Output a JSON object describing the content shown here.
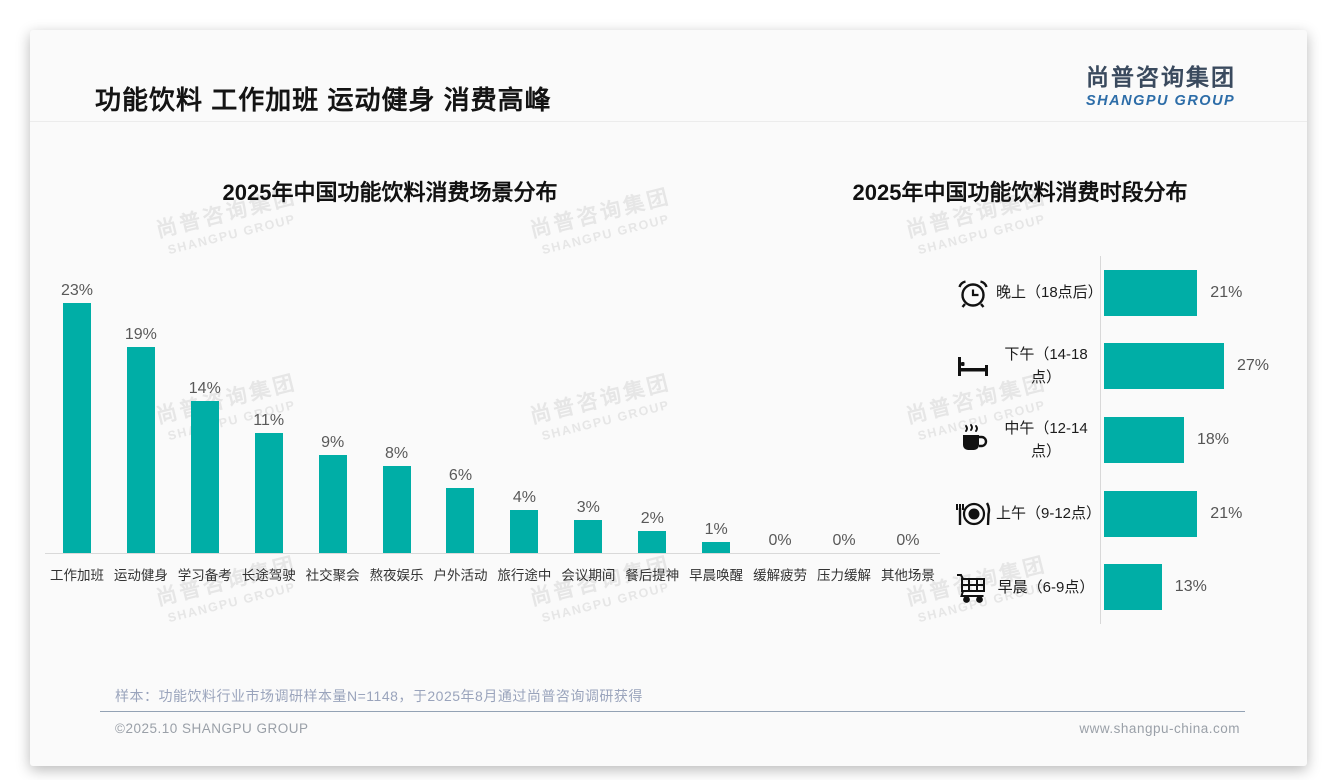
{
  "page": {
    "title": "功能饮料 工作加班 运动健身 消费高峰",
    "logo": {
      "cn": "尚普咨询集团",
      "en": "SHANGPU GROUP"
    },
    "watermark": {
      "cn": "尚普咨询集团",
      "en": "SHANGPU GROUP"
    },
    "footer": {
      "note": "样本：功能饮料行业市场调研样本量N=1148，于2025年8月通过尚普咨询调研获得",
      "copyright": "©2025.10 SHANGPU GROUP",
      "website": "www.shangpu-china.com"
    }
  },
  "colors": {
    "bar_teal": "#00AEA6",
    "logo_dark": "#3a4a5e",
    "logo_blue": "#2d6da8",
    "note_blue_gray": "#9aa4bc"
  },
  "chart_data": [
    {
      "type": "bar",
      "orientation": "vertical",
      "title": "2025年中国功能饮料消费场景分布",
      "categories": [
        "工作加班",
        "运动健身",
        "学习备考",
        "长途驾驶",
        "社交聚会",
        "熬夜娱乐",
        "户外活动",
        "旅行途中",
        "会议期间",
        "餐后提神",
        "早晨唤醒",
        "缓解疲劳",
        "压力缓解",
        "其他场景"
      ],
      "values": [
        23,
        19,
        14,
        11,
        9,
        8,
        6,
        4,
        3,
        2,
        1,
        0,
        0,
        0
      ],
      "labels": [
        "23%",
        "19%",
        "14%",
        "11%",
        "9%",
        "8%",
        "6%",
        "4%",
        "3%",
        "2%",
        "1%",
        "0%",
        "0%",
        "0%"
      ],
      "unit": "%",
      "ylim": [
        0,
        23
      ],
      "grid": false,
      "bar_color": "#00AEA6"
    },
    {
      "type": "bar",
      "orientation": "horizontal",
      "title": "2025年中国功能饮料消费时段分布",
      "categories": [
        "晚上（18点后）",
        "下午（14-18点）",
        "中午（12-14点）",
        "上午（9-12点）",
        "早晨（6-9点）"
      ],
      "values": [
        21,
        27,
        18,
        21,
        13
      ],
      "labels": [
        "21%",
        "27%",
        "18%",
        "21%",
        "13%"
      ],
      "icons": [
        "alarm-clock",
        "bed",
        "coffee",
        "plate-cutlery",
        "shopping-cart"
      ],
      "unit": "%",
      "xlim": [
        0,
        27
      ],
      "grid": false,
      "bar_color": "#00AEA6"
    }
  ]
}
